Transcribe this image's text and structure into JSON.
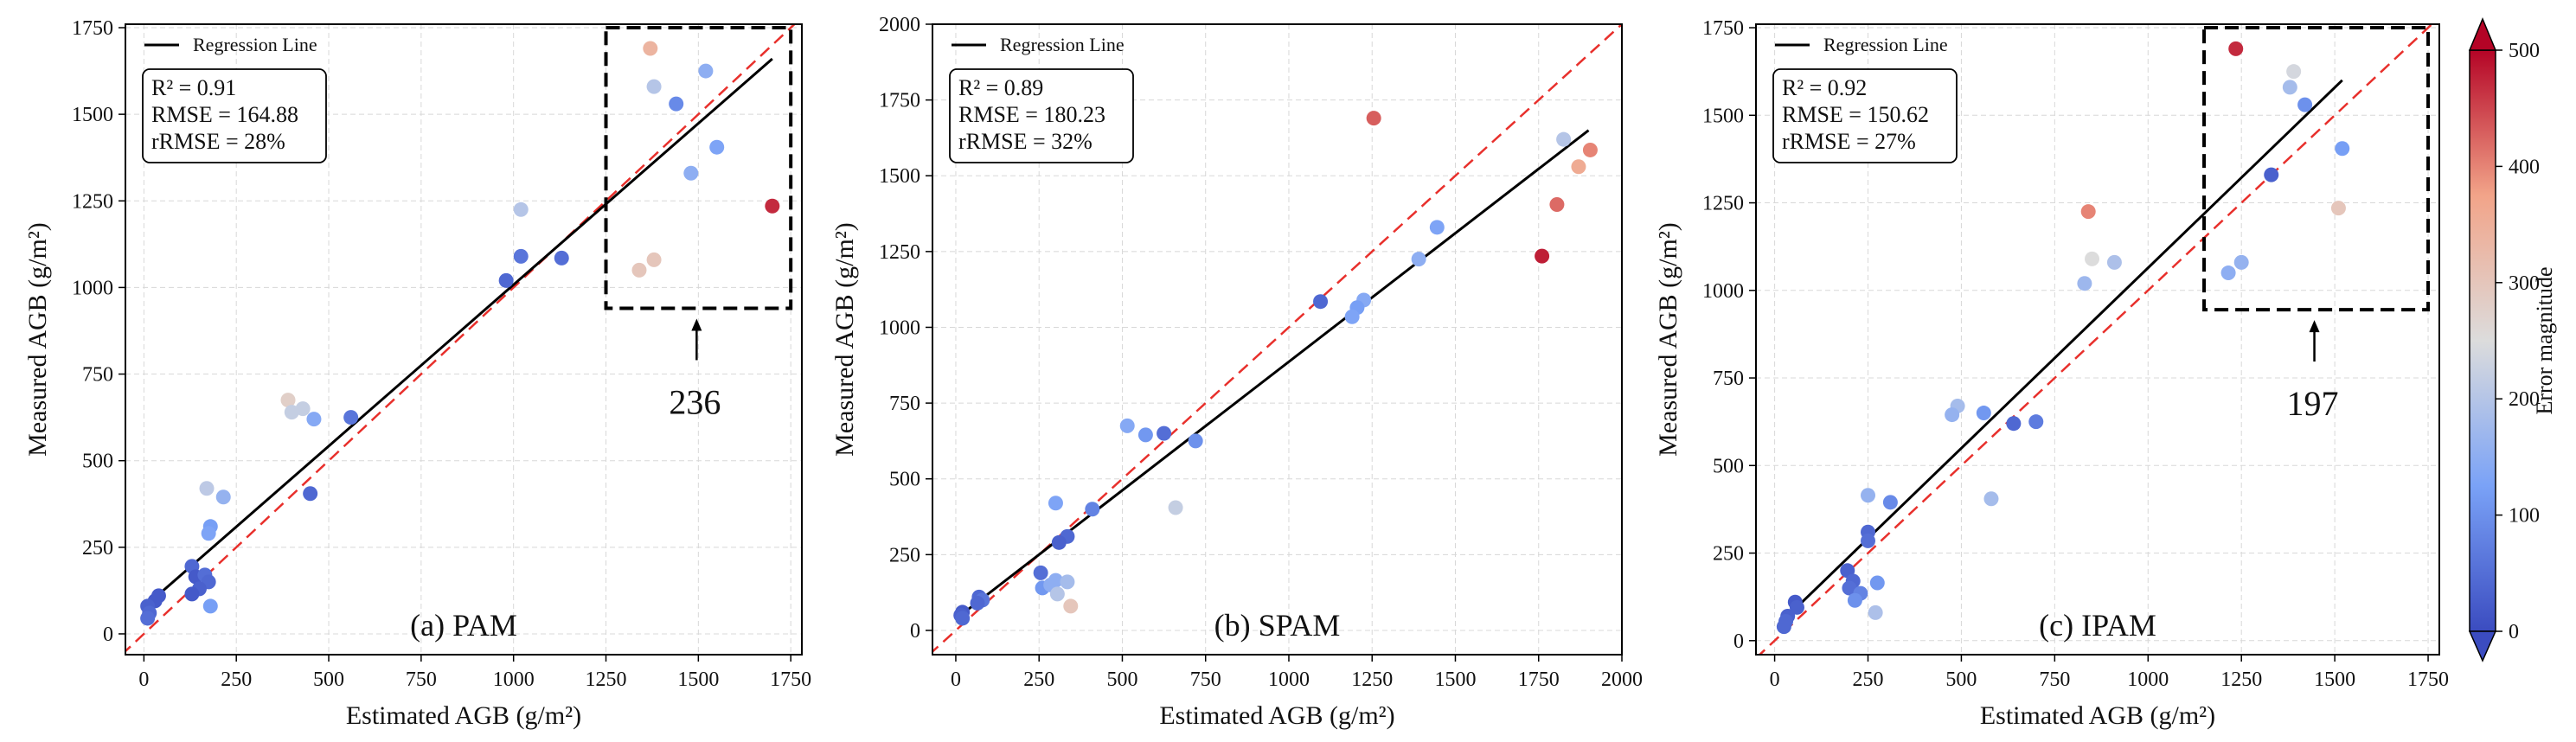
{
  "colorbar": {
    "label": "Error magnitude",
    "range": [
      0,
      500
    ],
    "ticks": [
      0,
      100,
      200,
      300,
      400,
      500
    ],
    "colors": [
      "#3b4cc0",
      "#7aa2f7",
      "#dcdcdc",
      "#f2a489",
      "#b40426"
    ]
  },
  "chart_data": [
    {
      "type": "scatter",
      "caption": "(a) PAM",
      "xlabel": "Estimated AGB (g/m²)",
      "ylabel": "Measured AGB (g/m²)",
      "xlim": [
        -50,
        1780
      ],
      "ylim": [
        -60,
        1760
      ],
      "xticks": [
        0,
        250,
        500,
        750,
        1000,
        1250,
        1500,
        1750
      ],
      "yticks": [
        0,
        250,
        500,
        750,
        1000,
        1250,
        1500,
        1750
      ],
      "legend": "Regression Line",
      "stats": [
        "R² = 0.91",
        "RMSE = 164.88",
        "rRMSE = 28%"
      ],
      "regression": {
        "x": [
          20,
          1700
        ],
        "y": [
          95,
          1660
        ]
      },
      "highlight": {
        "x": [
          1250,
          1750
        ],
        "y": [
          940,
          1750
        ],
        "label": "236"
      },
      "points": [
        [
          1370,
          1690,
          340
        ],
        [
          1520,
          1625,
          150
        ],
        [
          1380,
          1580,
          200
        ],
        [
          1440,
          1530,
          90
        ],
        [
          1550,
          1405,
          130
        ],
        [
          1480,
          1330,
          150
        ],
        [
          1700,
          1235,
          470
        ],
        [
          1380,
          1080,
          300
        ],
        [
          1340,
          1050,
          300
        ],
        [
          1020,
          1225,
          200
        ],
        [
          1020,
          1090,
          60
        ],
        [
          1130,
          1085,
          50
        ],
        [
          980,
          1020,
          40
        ],
        [
          390,
          675,
          280
        ],
        [
          400,
          640,
          220
        ],
        [
          430,
          650,
          220
        ],
        [
          460,
          620,
          140
        ],
        [
          560,
          625,
          60
        ],
        [
          450,
          405,
          40
        ],
        [
          170,
          420,
          210
        ],
        [
          215,
          395,
          160
        ],
        [
          180,
          310,
          120
        ],
        [
          175,
          290,
          130
        ],
        [
          130,
          195,
          40
        ],
        [
          140,
          165,
          20
        ],
        [
          165,
          170,
          50
        ],
        [
          175,
          150,
          40
        ],
        [
          150,
          130,
          30
        ],
        [
          130,
          115,
          20
        ],
        [
          180,
          80,
          120
        ],
        [
          40,
          110,
          20
        ],
        [
          30,
          95,
          20
        ],
        [
          10,
          80,
          30
        ],
        [
          15,
          60,
          40
        ],
        [
          10,
          45,
          50
        ]
      ]
    },
    {
      "type": "scatter",
      "caption": "(b) SPAM",
      "xlabel": "Estimated AGB (g/m²)",
      "ylabel": "Measured AGB (g/m²)",
      "xlim": [
        -70,
        2000
      ],
      "ylim": [
        -80,
        2000
      ],
      "xticks": [
        0,
        250,
        500,
        750,
        1000,
        1250,
        1500,
        1750,
        2000
      ],
      "yticks": [
        0,
        250,
        500,
        750,
        1000,
        1250,
        1500,
        1750,
        2000
      ],
      "legend": "Regression Line",
      "stats": [
        "R² = 0.89",
        "RMSE = 180.23",
        "rRMSE = 32%"
      ],
      "regression": {
        "x": [
          20,
          1900
        ],
        "y": [
          55,
          1650
        ]
      },
      "points": [
        [
          1255,
          1690,
          430
        ],
        [
          1905,
          1585,
          400
        ],
        [
          1825,
          1620,
          200
        ],
        [
          1870,
          1530,
          360
        ],
        [
          1805,
          1405,
          420
        ],
        [
          1760,
          1235,
          480
        ],
        [
          1445,
          1330,
          130
        ],
        [
          1390,
          1225,
          150
        ],
        [
          1225,
          1090,
          140
        ],
        [
          1205,
          1065,
          120
        ],
        [
          1190,
          1035,
          130
        ],
        [
          1095,
          1085,
          40
        ],
        [
          515,
          675,
          140
        ],
        [
          570,
          645,
          110
        ],
        [
          625,
          650,
          50
        ],
        [
          720,
          625,
          100
        ],
        [
          660,
          405,
          220
        ],
        [
          300,
          420,
          130
        ],
        [
          410,
          400,
          80
        ],
        [
          335,
          310,
          40
        ],
        [
          310,
          290,
          30
        ],
        [
          255,
          190,
          50
        ],
        [
          260,
          140,
          110
        ],
        [
          300,
          165,
          150
        ],
        [
          335,
          160,
          180
        ],
        [
          285,
          150,
          150
        ],
        [
          305,
          120,
          200
        ],
        [
          345,
          80,
          300
        ],
        [
          70,
          110,
          40
        ],
        [
          80,
          100,
          60
        ],
        [
          65,
          90,
          40
        ],
        [
          20,
          60,
          20
        ],
        [
          15,
          50,
          30
        ],
        [
          20,
          40,
          40
        ]
      ]
    },
    {
      "type": "scatter",
      "caption": "(c) IPAM",
      "xlabel": "Estimated AGB (g/m²)",
      "ylabel": "Measured AGB (g/m²)",
      "xlim": [
        -50,
        1780
      ],
      "ylim": [
        -40,
        1760
      ],
      "xticks": [
        0,
        250,
        500,
        750,
        1000,
        1250,
        1500,
        1750
      ],
      "yticks": [
        0,
        250,
        500,
        750,
        1000,
        1250,
        1500,
        1750
      ],
      "legend": "Regression Line",
      "stats": [
        "R² = 0.92",
        "RMSE = 150.62",
        "rRMSE = 27%"
      ],
      "regression": {
        "x": [
          20,
          1520
        ],
        "y": [
          55,
          1600
        ]
      },
      "highlight": {
        "x": [
          1150,
          1750
        ],
        "y": [
          945,
          1750
        ],
        "label": "197"
      },
      "points": [
        [
          1235,
          1690,
          470
        ],
        [
          1390,
          1625,
          240
        ],
        [
          1380,
          1580,
          180
        ],
        [
          1420,
          1530,
          100
        ],
        [
          1520,
          1405,
          120
        ],
        [
          1330,
          1330,
          30
        ],
        [
          1510,
          1235,
          300
        ],
        [
          1250,
          1080,
          160
        ],
        [
          1215,
          1050,
          150
        ],
        [
          840,
          1225,
          400
        ],
        [
          850,
          1090,
          250
        ],
        [
          910,
          1080,
          190
        ],
        [
          830,
          1020,
          170
        ],
        [
          490,
          670,
          180
        ],
        [
          475,
          645,
          160
        ],
        [
          560,
          650,
          110
        ],
        [
          640,
          620,
          40
        ],
        [
          700,
          625,
          70
        ],
        [
          580,
          405,
          180
        ],
        [
          250,
          415,
          160
        ],
        [
          310,
          395,
          90
        ],
        [
          250,
          310,
          40
        ],
        [
          250,
          285,
          50
        ],
        [
          195,
          200,
          30
        ],
        [
          210,
          170,
          40
        ],
        [
          200,
          150,
          50
        ],
        [
          230,
          135,
          80
        ],
        [
          215,
          115,
          100
        ],
        [
          275,
          165,
          110
        ],
        [
          270,
          80,
          190
        ],
        [
          55,
          110,
          20
        ],
        [
          60,
          95,
          30
        ],
        [
          35,
          70,
          30
        ],
        [
          30,
          55,
          40
        ],
        [
          25,
          40,
          40
        ]
      ]
    }
  ]
}
